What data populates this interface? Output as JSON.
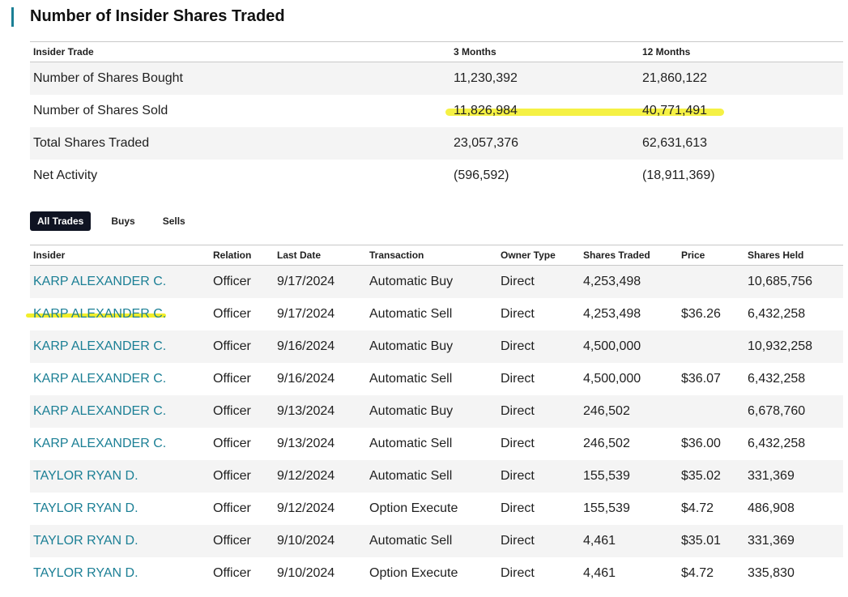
{
  "page": {
    "title": "Number of Insider Shares Traded"
  },
  "summary": {
    "headers": [
      "Insider Trade",
      "3 Months",
      "12 Months"
    ],
    "rows": [
      [
        "Number of Shares Bought",
        "11,230,392",
        "21,860,122"
      ],
      [
        "Number of Shares Sold",
        "11,826,984",
        "40,771,491"
      ],
      [
        "Total Shares Traded",
        "23,057,376",
        "62,631,613"
      ],
      [
        "Net Activity",
        "(596,592)",
        "(18,911,369)"
      ]
    ]
  },
  "tabs": {
    "all": "All Trades",
    "buys": "Buys",
    "sells": "Sells",
    "active": "All Trades"
  },
  "trades": {
    "headers": [
      "Insider",
      "Relation",
      "Last Date",
      "Transaction",
      "Owner Type",
      "Shares Traded",
      "Price",
      "Shares Held"
    ],
    "rows": [
      [
        "KARP ALEXANDER C.",
        "Officer",
        "9/17/2024",
        "Automatic Buy",
        "Direct",
        "4,253,498",
        "",
        "10,685,756"
      ],
      [
        "KARP ALEXANDER C.",
        "Officer",
        "9/17/2024",
        "Automatic Sell",
        "Direct",
        "4,253,498",
        "$36.26",
        "6,432,258"
      ],
      [
        "KARP ALEXANDER C.",
        "Officer",
        "9/16/2024",
        "Automatic Buy",
        "Direct",
        "4,500,000",
        "",
        "10,932,258"
      ],
      [
        "KARP ALEXANDER C.",
        "Officer",
        "9/16/2024",
        "Automatic Sell",
        "Direct",
        "4,500,000",
        "$36.07",
        "6,432,258"
      ],
      [
        "KARP ALEXANDER C.",
        "Officer",
        "9/13/2024",
        "Automatic Buy",
        "Direct",
        "246,502",
        "",
        "6,678,760"
      ],
      [
        "KARP ALEXANDER C.",
        "Officer",
        "9/13/2024",
        "Automatic Sell",
        "Direct",
        "246,502",
        "$36.00",
        "6,432,258"
      ],
      [
        "TAYLOR RYAN D.",
        "Officer",
        "9/12/2024",
        "Automatic Sell",
        "Direct",
        "155,539",
        "$35.02",
        "331,369"
      ],
      [
        "TAYLOR RYAN D.",
        "Officer",
        "9/12/2024",
        "Option Execute",
        "Direct",
        "155,539",
        "$4.72",
        "486,908"
      ],
      [
        "TAYLOR RYAN D.",
        "Officer",
        "9/10/2024",
        "Automatic Sell",
        "Direct",
        "4,461",
        "$35.01",
        "331,369"
      ],
      [
        "TAYLOR RYAN D.",
        "Officer",
        "9/10/2024",
        "Option Execute",
        "Direct",
        "4,461",
        "$4.72",
        "335,830"
      ]
    ]
  },
  "colors": {
    "accent": "#1b7f95",
    "highlight": "#f4f03a",
    "active_tab": "#0f1322",
    "stripe": "#f4f4f4"
  }
}
